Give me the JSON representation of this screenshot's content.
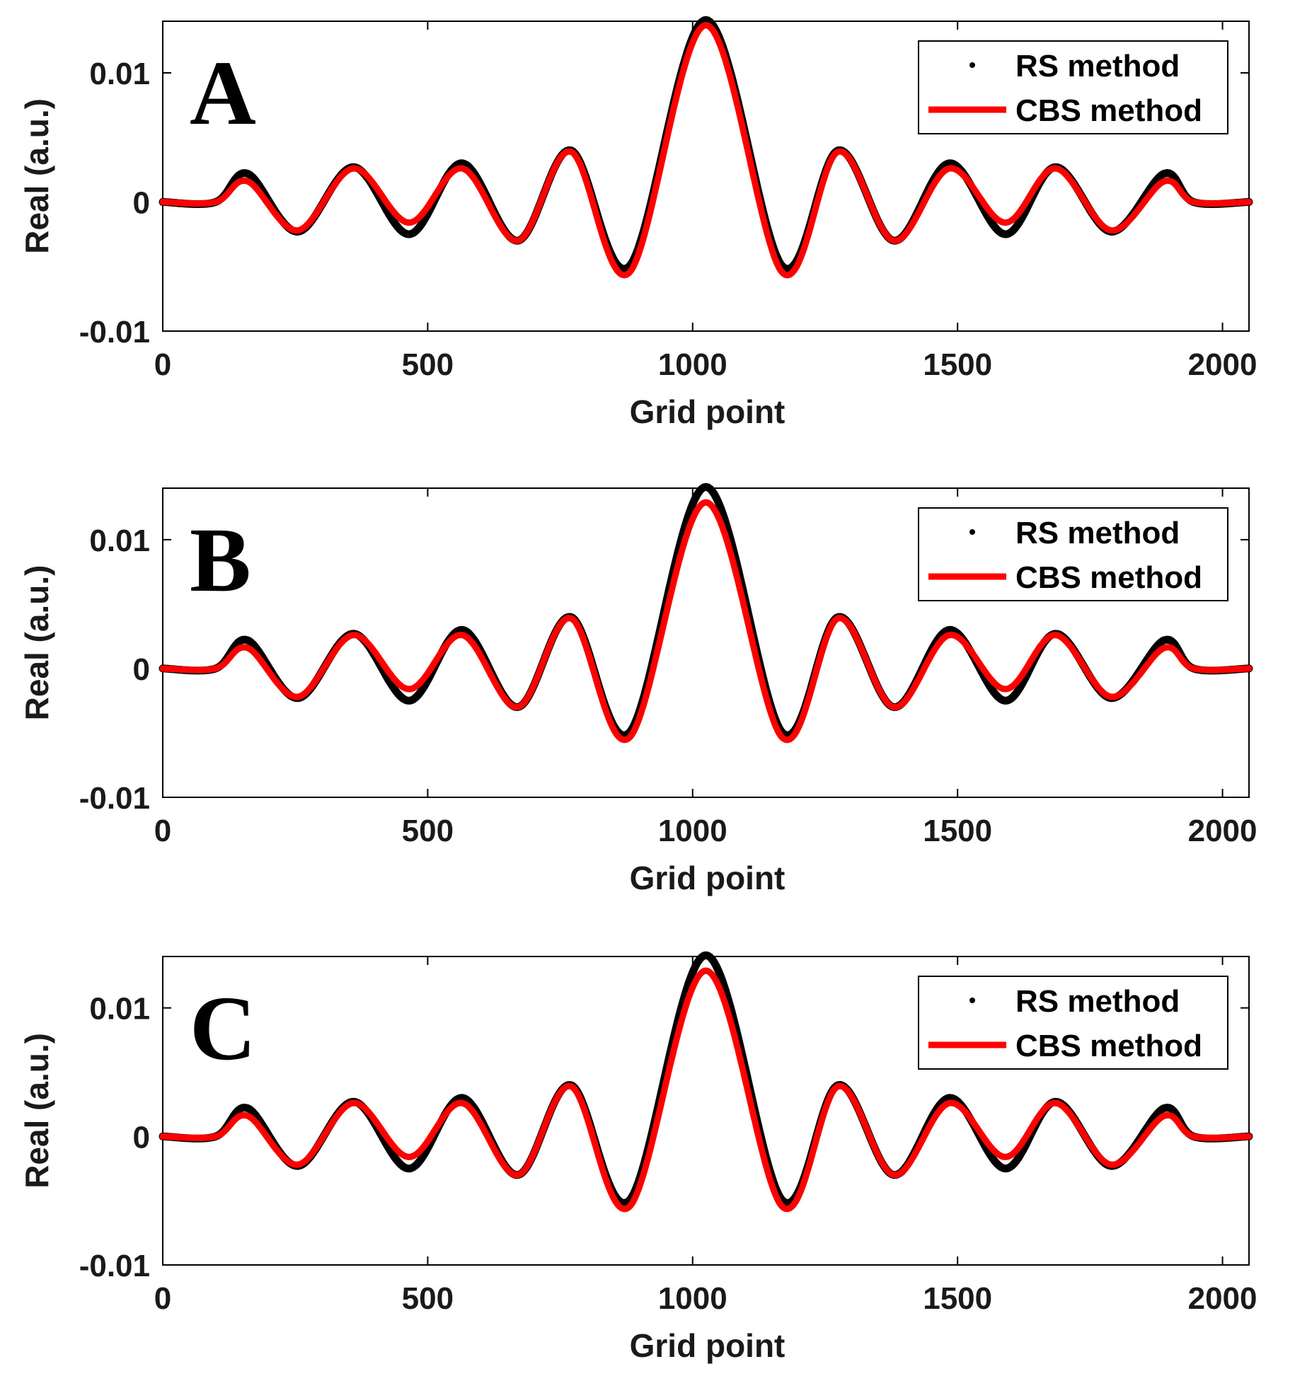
{
  "colors": {
    "rs": "#000000",
    "cbs": "#ff0000",
    "axis": "#000000"
  },
  "chart_data": [
    {
      "type": "line",
      "panel_label": "A",
      "xlabel": "Grid point",
      "ylabel": "Real (a.u.)",
      "xlim": [
        0,
        2050
      ],
      "ylim": [
        -0.01,
        0.014
      ],
      "xticks": [
        0,
        500,
        1000,
        1500,
        2000
      ],
      "xtick_labels": [
        "0",
        "500",
        "1000",
        "1500",
        "2000"
      ],
      "yticks": [
        -0.01,
        0,
        0.01
      ],
      "ytick_labels": [
        "-0.01",
        "0",
        "0.01"
      ],
      "legend": {
        "position": "top-right",
        "entries": [
          "RS method",
          "CBS method"
        ]
      },
      "series": [
        {
          "name": "RS method",
          "style": "markers",
          "x": [
            0,
            100,
            160,
            255,
            360,
            465,
            565,
            670,
            770,
            880,
            1025,
            1170,
            1275,
            1380,
            1485,
            1590,
            1685,
            1790,
            1890,
            1945,
            2050
          ],
          "y": [
            0,
            0,
            0.0022,
            -0.0023,
            0.0027,
            -0.0025,
            0.003,
            -0.003,
            0.004,
            -0.005,
            0.0141,
            -0.005,
            0.004,
            -0.003,
            0.003,
            -0.0025,
            0.0027,
            -0.0023,
            0.0022,
            0,
            0
          ]
        },
        {
          "name": "CBS method",
          "style": "line",
          "x": [
            0,
            100,
            160,
            255,
            360,
            465,
            565,
            670,
            770,
            880,
            1025,
            1170,
            1275,
            1380,
            1485,
            1590,
            1685,
            1790,
            1890,
            1945,
            2050
          ],
          "y": [
            0,
            0,
            0.0016,
            -0.0022,
            0.0026,
            -0.0016,
            0.0026,
            -0.003,
            0.0039,
            -0.0055,
            0.0137,
            -0.0055,
            0.0039,
            -0.003,
            0.0026,
            -0.0016,
            0.0026,
            -0.0022,
            0.0016,
            0,
            0
          ]
        }
      ]
    },
    {
      "type": "line",
      "panel_label": "B",
      "xlabel": "Grid point",
      "ylabel": "Real (a.u.)",
      "xlim": [
        0,
        2050
      ],
      "ylim": [
        -0.01,
        0.014
      ],
      "xticks": [
        0,
        500,
        1000,
        1500,
        2000
      ],
      "xtick_labels": [
        "0",
        "500",
        "1000",
        "1500",
        "2000"
      ],
      "yticks": [
        -0.01,
        0,
        0.01
      ],
      "ytick_labels": [
        "-0.01",
        "0",
        "0.01"
      ],
      "legend": {
        "position": "top-right",
        "entries": [
          "RS method",
          "CBS method"
        ]
      },
      "series": [
        {
          "name": "RS method",
          "style": "markers",
          "x": [
            0,
            100,
            160,
            255,
            360,
            465,
            565,
            670,
            770,
            880,
            1025,
            1170,
            1275,
            1380,
            1485,
            1590,
            1685,
            1790,
            1890,
            1945,
            2050
          ],
          "y": [
            0,
            0,
            0.0022,
            -0.0023,
            0.0027,
            -0.0025,
            0.003,
            -0.003,
            0.004,
            -0.005,
            0.0141,
            -0.005,
            0.004,
            -0.003,
            0.003,
            -0.0025,
            0.0027,
            -0.0023,
            0.0022,
            0,
            0
          ]
        },
        {
          "name": "CBS method",
          "style": "line",
          "x": [
            0,
            100,
            160,
            255,
            360,
            465,
            565,
            670,
            770,
            880,
            1025,
            1170,
            1275,
            1380,
            1485,
            1590,
            1685,
            1790,
            1890,
            1945,
            2050
          ],
          "y": [
            0,
            0,
            0.0016,
            -0.0022,
            0.0026,
            -0.0016,
            0.0026,
            -0.003,
            0.0039,
            -0.0054,
            0.0129,
            -0.0054,
            0.0039,
            -0.003,
            0.0026,
            -0.0016,
            0.0026,
            -0.0022,
            0.0016,
            0,
            0
          ]
        }
      ]
    },
    {
      "type": "line",
      "panel_label": "C",
      "xlabel": "Grid point",
      "ylabel": "Real (a.u.)",
      "xlim": [
        0,
        2050
      ],
      "ylim": [
        -0.01,
        0.014
      ],
      "xticks": [
        0,
        500,
        1000,
        1500,
        2000
      ],
      "xtick_labels": [
        "0",
        "500",
        "1000",
        "1500",
        "2000"
      ],
      "yticks": [
        -0.01,
        0,
        0.01
      ],
      "ytick_labels": [
        "-0.01",
        "0",
        "0.01"
      ],
      "legend": {
        "position": "top-right",
        "entries": [
          "RS method",
          "CBS method"
        ]
      },
      "series": [
        {
          "name": "RS method",
          "style": "markers",
          "x": [
            0,
            100,
            160,
            255,
            360,
            465,
            565,
            670,
            770,
            880,
            1025,
            1170,
            1275,
            1380,
            1485,
            1590,
            1685,
            1790,
            1890,
            1945,
            2050
          ],
          "y": [
            0,
            0,
            0.0022,
            -0.0023,
            0.0027,
            -0.0025,
            0.003,
            -0.003,
            0.004,
            -0.005,
            0.0141,
            -0.005,
            0.004,
            -0.003,
            0.003,
            -0.0025,
            0.0027,
            -0.0023,
            0.0022,
            0,
            0
          ]
        },
        {
          "name": "CBS method",
          "style": "line",
          "x": [
            0,
            100,
            160,
            255,
            360,
            465,
            565,
            670,
            770,
            880,
            1025,
            1170,
            1275,
            1380,
            1485,
            1590,
            1685,
            1790,
            1890,
            1945,
            2050
          ],
          "y": [
            0,
            0,
            0.0016,
            -0.0022,
            0.0026,
            -0.0016,
            0.0026,
            -0.003,
            0.0039,
            -0.0055,
            0.0129,
            -0.0055,
            0.0039,
            -0.003,
            0.0026,
            -0.0016,
            0.0026,
            -0.0022,
            0.0016,
            0,
            0
          ]
        }
      ]
    }
  ]
}
